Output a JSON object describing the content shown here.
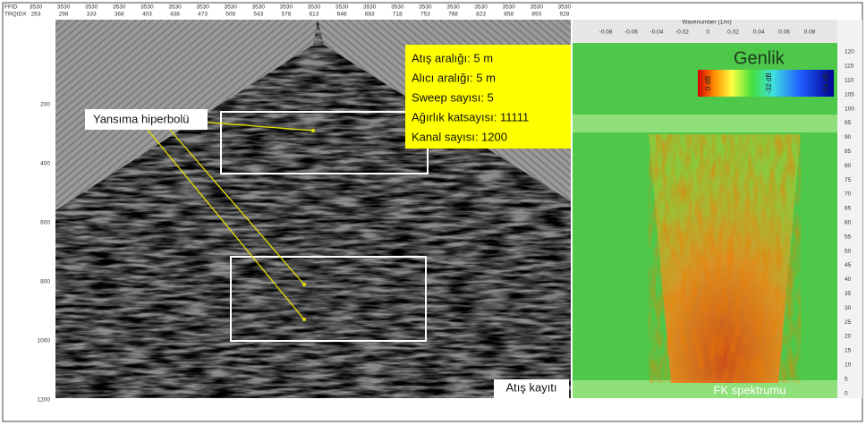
{
  "seismic": {
    "header": {
      "row_labels": [
        "FFID",
        "TRQIDX"
      ],
      "ffid": [
        "3530",
        "3530",
        "3530",
        "3530",
        "3530",
        "3530",
        "3530",
        "3530",
        "3530",
        "3530",
        "3530",
        "3530",
        "3530",
        "3530",
        "3530",
        "3530",
        "3530",
        "3530",
        "3530",
        "3530"
      ],
      "trqidx": [
        "263",
        "298",
        "333",
        "368",
        "403",
        "438",
        "473",
        "508",
        "543",
        "578",
        "613",
        "648",
        "683",
        "718",
        "753",
        "788",
        "823",
        "858",
        "893",
        "928"
      ]
    },
    "y_ticks": [
      "200",
      "400",
      "600",
      "800",
      "1000",
      "1200"
    ],
    "parameters": [
      "Atış aralığı: 5 m",
      "Alıcı aralığı: 5 m",
      "Sweep sayısı: 5",
      "Ağırlık katsayısı: 11111",
      "Kanal sayısı: 1200"
    ],
    "annotation": "Yansıma hiperbolü",
    "caption": "Atış kayıtı"
  },
  "fk": {
    "axis_title": "Wavenumber (1/m)",
    "x_ticks": [
      "-0.08",
      "-0.06",
      "-0.04",
      "-0.02",
      "0",
      "0.02",
      "0.04",
      "0.06",
      "0.08"
    ],
    "y_ticks": [
      "120",
      "115",
      "110",
      "105",
      "100",
      "95",
      "90",
      "85",
      "80",
      "75",
      "70",
      "65",
      "60",
      "55",
      "50",
      "45",
      "40",
      "35",
      "30",
      "25",
      "20",
      "15",
      "10",
      "5",
      "0"
    ],
    "legend_title": "Genlik",
    "colorbar_labels": [
      "0 dB",
      "-32 dB",
      "-64 dB"
    ],
    "caption": "FK spektrumu"
  }
}
